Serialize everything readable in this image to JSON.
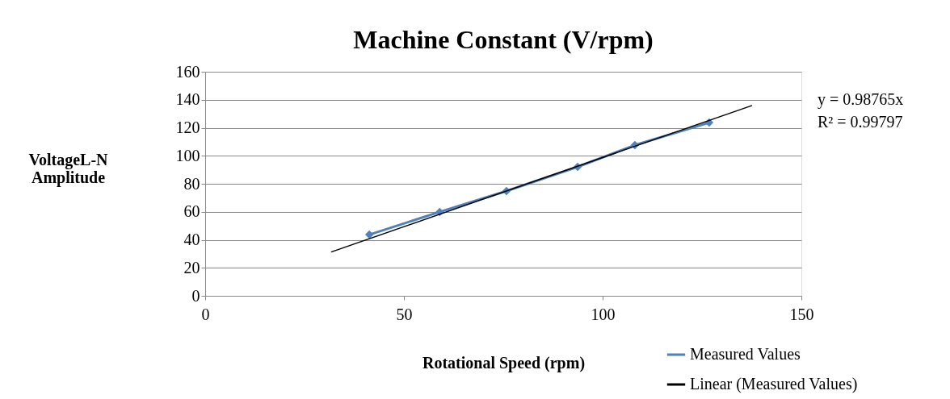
{
  "chart_data": {
    "type": "line",
    "title": "Machine Constant (V/rpm)",
    "xlabel": "Rotational Speed (rpm)",
    "ylabel": "VoltageL-N Amplitude",
    "series": [
      {
        "name": "Measured Values",
        "color": "#4f81bd",
        "line_style": "solid",
        "marker": "diamond",
        "x": [
          41.3,
          59.0,
          75.8,
          93.7,
          108.1,
          126.8
        ],
        "values": [
          43.7,
          59.9,
          74.8,
          92.1,
          107.6,
          123.7
        ]
      },
      {
        "name": "Linear (Measured Values)",
        "color": "#000000",
        "line_style": "solid",
        "marker": "none",
        "x": [
          31.7,
          137.6
        ],
        "values": [
          31.3,
          135.9
        ]
      }
    ],
    "xlim": [
      0,
      150
    ],
    "xticks": [
      0,
      50,
      100,
      150
    ],
    "ylim": [
      0,
      160
    ],
    "yticks": [
      0,
      20,
      40,
      60,
      80,
      100,
      120,
      140,
      160
    ],
    "grid": "y",
    "legend": "bottom right",
    "annotations": [
      "y = 0.98765x",
      "R² = 0.99797"
    ]
  }
}
